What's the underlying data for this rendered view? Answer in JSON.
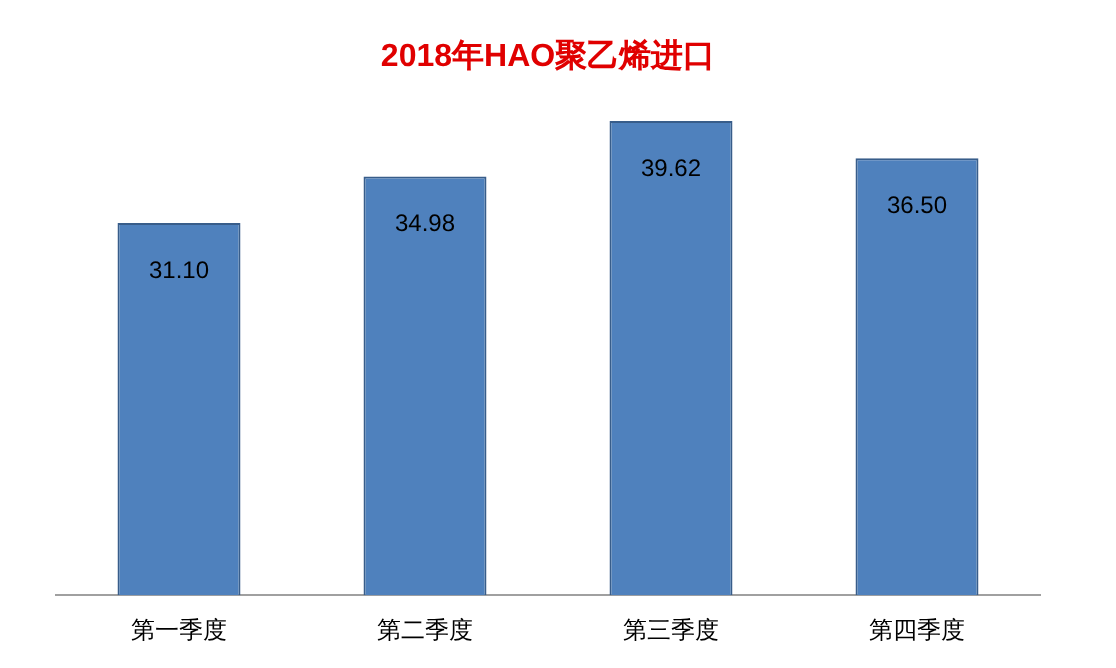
{
  "chart_data": {
    "type": "bar",
    "title": "2018年HAO聚乙烯进口",
    "categories": [
      "第一季度",
      "第二季度",
      "第三季度",
      "第四季度"
    ],
    "values": [
      31.1,
      34.98,
      39.62,
      36.5
    ],
    "value_labels": [
      "31.10",
      "34.98",
      "39.62",
      "36.50"
    ],
    "color": "#4f81bd",
    "grid": false,
    "legend": false
  }
}
